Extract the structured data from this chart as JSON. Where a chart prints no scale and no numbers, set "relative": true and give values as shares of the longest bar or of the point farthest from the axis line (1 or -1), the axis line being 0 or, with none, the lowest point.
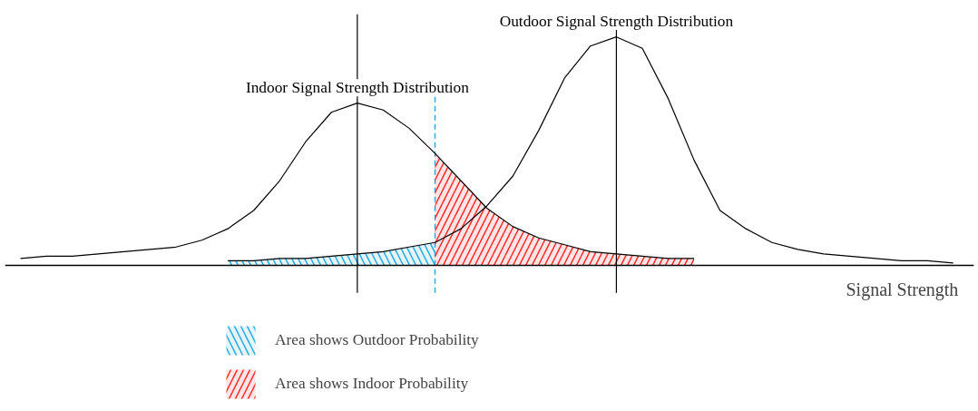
{
  "chart_data": {
    "type": "line",
    "relative": true,
    "xlabel": "Signal Strength",
    "categories": [
      null,
      null,
      null,
      null,
      null,
      null,
      null,
      null,
      null,
      null,
      null,
      null,
      null,
      null,
      null,
      null,
      null,
      null,
      null,
      null,
      null,
      null,
      null,
      null,
      null,
      null,
      null,
      null,
      null,
      null,
      null,
      null,
      null,
      null,
      null,
      null,
      null
    ],
    "series": [
      {
        "name": "Indoor Signal Strength Distribution",
        "color": "#000000",
        "values": [
          0.03,
          0.04,
          0.04,
          0.05,
          0.06,
          0.07,
          0.08,
          0.11,
          0.16,
          0.24,
          0.37,
          0.54,
          0.67,
          0.71,
          0.68,
          0.6,
          0.49,
          0.37,
          0.25,
          0.17,
          0.12,
          0.09,
          0.06,
          0.05,
          0.04,
          0.03,
          0.03,
          null,
          null,
          null,
          null,
          null,
          null,
          null,
          null,
          null,
          null
        ]
      },
      {
        "name": "Outdoor Signal Strength Distribution",
        "color": "#000000",
        "values": [
          null,
          null,
          null,
          null,
          null,
          null,
          null,
          null,
          0.02,
          0.02,
          0.03,
          0.03,
          0.04,
          0.05,
          0.06,
          0.08,
          0.1,
          0.16,
          0.26,
          0.39,
          0.59,
          0.82,
          0.96,
          1,
          0.95,
          0.73,
          0.46,
          0.24,
          0.16,
          0.1,
          0.07,
          0.05,
          0.04,
          0.03,
          0.02,
          0.02,
          0.01
        ]
      },
      {
        "name": "Area shows Outdoor Probability",
        "type": "area",
        "color": "#29abe2",
        "values": [
          null,
          null,
          null,
          null,
          null,
          null,
          null,
          null,
          0.02,
          0.02,
          0.03,
          0.03,
          0.04,
          0.05,
          0.06,
          0.08,
          0.1,
          null,
          null,
          null,
          null,
          null,
          null,
          null,
          null,
          null,
          null,
          null,
          null,
          null,
          null,
          null,
          null,
          null,
          null,
          null,
          null
        ]
      },
      {
        "name": "Area shows Indoor Probability",
        "type": "area",
        "color": "#ff2a2a",
        "values": [
          null,
          null,
          null,
          null,
          null,
          null,
          null,
          null,
          null,
          null,
          null,
          null,
          null,
          null,
          null,
          null,
          0.49,
          0.37,
          0.25,
          0.17,
          0.12,
          0.09,
          0.06,
          0.05,
          0.04,
          0.03,
          0.03,
          null,
          null,
          null,
          null,
          null,
          null,
          null,
          null,
          null,
          null
        ]
      }
    ],
    "legend": "bottom",
    "grid": false
  }
}
